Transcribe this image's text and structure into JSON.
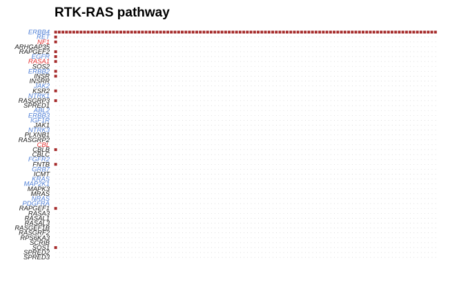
{
  "chart_data": {
    "type": "heatmap",
    "title": "RTK-RAS pathway",
    "colors": {
      "mutation": "#a52a2a",
      "grid_dot": "#bdbdbd",
      "label_default": "#1a1a1a",
      "label_blue": "#4f7fd6",
      "label_red": "#e53030"
    },
    "n_samples": 106,
    "genes": [
      {
        "name": "ERBB4",
        "color": "blue"
      },
      {
        "name": "RET",
        "color": "blue"
      },
      {
        "name": "NF1",
        "color": "red"
      },
      {
        "name": "ARHGAP35",
        "color": "default"
      },
      {
        "name": "RAPGEF2",
        "color": "default"
      },
      {
        "name": "EGFR",
        "color": "blue"
      },
      {
        "name": "RASA1",
        "color": "red"
      },
      {
        "name": "SOS2",
        "color": "default"
      },
      {
        "name": "ERBB2",
        "color": "blue"
      },
      {
        "name": "INSR",
        "color": "default"
      },
      {
        "name": "INSRR",
        "color": "default"
      },
      {
        "name": "JAK2",
        "color": "blue"
      },
      {
        "name": "KSR2",
        "color": "default"
      },
      {
        "name": "NTRK1",
        "color": "blue"
      },
      {
        "name": "RASGRP3",
        "color": "default"
      },
      {
        "name": "SPRED1",
        "color": "default"
      },
      {
        "name": "ABL2",
        "color": "blue"
      },
      {
        "name": "ERBB3",
        "color": "blue"
      },
      {
        "name": "IGF1R",
        "color": "blue"
      },
      {
        "name": "JAK1",
        "color": "default"
      },
      {
        "name": "NTRK3",
        "color": "blue"
      },
      {
        "name": "PLXNB1",
        "color": "default"
      },
      {
        "name": "RASGRP2",
        "color": "default"
      },
      {
        "name": "CBL",
        "color": "red"
      },
      {
        "name": "CBLB",
        "color": "default"
      },
      {
        "name": "CBLC",
        "color": "default"
      },
      {
        "name": "FGFR2",
        "color": "blue"
      },
      {
        "name": "FNTB",
        "color": "default"
      },
      {
        "name": "GRB7",
        "color": "blue"
      },
      {
        "name": "ICMT",
        "color": "default"
      },
      {
        "name": "KRAS",
        "color": "blue"
      },
      {
        "name": "MAP2K1",
        "color": "blue"
      },
      {
        "name": "MAPK3",
        "color": "default"
      },
      {
        "name": "MRAS",
        "color": "default"
      },
      {
        "name": "NRAS",
        "color": "blue"
      },
      {
        "name": "PDGFRA",
        "color": "blue"
      },
      {
        "name": "RAPGEF1",
        "color": "default"
      },
      {
        "name": "RASA3",
        "color": "default"
      },
      {
        "name": "RASAL1",
        "color": "default"
      },
      {
        "name": "RASAL3",
        "color": "default"
      },
      {
        "name": "RASGEF1B",
        "color": "default"
      },
      {
        "name": "RASGRF2",
        "color": "default"
      },
      {
        "name": "RPS6KA3",
        "color": "default"
      },
      {
        "name": "SCRIB",
        "color": "default"
      },
      {
        "name": "SOS1",
        "color": "default"
      },
      {
        "name": "SPRED2",
        "color": "default"
      },
      {
        "name": "SPRED3",
        "color": "default"
      }
    ],
    "mutations": [
      {
        "gene": "ERBB4",
        "samples": [
          0,
          1,
          2,
          3,
          4,
          5,
          6,
          7,
          8,
          9,
          10,
          11,
          12,
          13,
          14,
          15,
          16,
          17,
          18,
          19,
          20,
          21,
          22,
          23,
          24,
          25,
          26,
          27,
          28,
          29,
          30,
          31,
          32,
          33,
          34,
          35,
          36,
          37,
          38,
          39,
          40,
          41,
          42,
          43,
          44,
          45,
          46,
          47,
          48,
          49,
          50,
          51,
          52,
          53,
          54,
          55,
          56,
          57,
          58,
          59,
          60,
          61,
          62,
          63,
          64,
          65,
          66,
          67,
          68,
          69,
          70,
          71,
          72,
          73,
          74,
          75,
          76,
          77,
          78,
          79,
          80,
          81,
          82,
          83,
          84,
          85,
          86,
          87,
          88,
          89,
          90,
          91,
          92,
          93,
          94,
          95,
          96,
          97,
          98,
          99,
          100,
          101,
          102,
          103,
          104,
          105
        ]
      },
      {
        "gene": "RET",
        "samples": [
          0
        ]
      },
      {
        "gene": "NF1",
        "samples": [
          0
        ]
      },
      {
        "gene": "RAPGEF2",
        "samples": [
          0
        ]
      },
      {
        "gene": "EGFR",
        "samples": [
          0
        ]
      },
      {
        "gene": "RASA1",
        "samples": [
          0
        ]
      },
      {
        "gene": "ERBB2",
        "samples": [
          0
        ]
      },
      {
        "gene": "INSR",
        "samples": [
          0
        ]
      },
      {
        "gene": "KSR2",
        "samples": [
          0
        ]
      },
      {
        "gene": "RASGRP3",
        "samples": [
          0
        ]
      },
      {
        "gene": "CBLB",
        "samples": [
          0
        ]
      },
      {
        "gene": "FNTB",
        "samples": [
          0
        ]
      },
      {
        "gene": "RAPGEF1",
        "samples": [
          0
        ]
      },
      {
        "gene": "SOS1",
        "samples": [
          0
        ]
      }
    ]
  }
}
